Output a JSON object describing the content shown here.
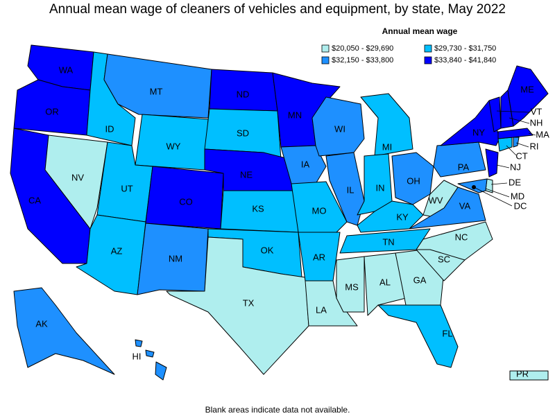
{
  "title": "Annual mean wage of cleaners of vehicles and equipment, by state, May 2022",
  "legend": {
    "title": "Annual mean wage",
    "items": [
      {
        "label": "$20,050 - $29,690",
        "color": "#afeeee"
      },
      {
        "label": "$29,730 - $31,750",
        "color": "#00bfff"
      },
      {
        "label": "$32,150 - $33,800",
        "color": "#1e90ff"
      },
      {
        "label": "$33,840 - $41,840",
        "color": "#0000ff"
      }
    ]
  },
  "states": [
    {
      "label": "WA",
      "class": 3
    },
    {
      "label": "OR",
      "class": 3
    },
    {
      "label": "CA",
      "class": 3
    },
    {
      "label": "NV",
      "class": 0
    },
    {
      "label": "ID",
      "class": 1
    },
    {
      "label": "MT",
      "class": 2
    },
    {
      "label": "WY",
      "class": 1
    },
    {
      "label": "UT",
      "class": 1
    },
    {
      "label": "CO",
      "class": 3
    },
    {
      "label": "AZ",
      "class": 1
    },
    {
      "label": "NM",
      "class": 2
    },
    {
      "label": "ND",
      "class": 3
    },
    {
      "label": "SD",
      "class": 1
    },
    {
      "label": "NE",
      "class": 3
    },
    {
      "label": "KS",
      "class": 1
    },
    {
      "label": "OK",
      "class": 1
    },
    {
      "label": "TX",
      "class": 0
    },
    {
      "label": "MN",
      "class": 3
    },
    {
      "label": "IA",
      "class": 2
    },
    {
      "label": "MO",
      "class": 1
    },
    {
      "label": "AR",
      "class": 1
    },
    {
      "label": "LA",
      "class": 0
    },
    {
      "label": "WI",
      "class": 2
    },
    {
      "label": "IL",
      "class": 2
    },
    {
      "label": "MI",
      "class": 1
    },
    {
      "label": "IN",
      "class": 1
    },
    {
      "label": "OH",
      "class": 2
    },
    {
      "label": "KY",
      "class": 1
    },
    {
      "label": "TN",
      "class": 1
    },
    {
      "label": "MS",
      "class": 0
    },
    {
      "label": "AL",
      "class": 0
    },
    {
      "label": "GA",
      "class": 0
    },
    {
      "label": "FL",
      "class": 1
    },
    {
      "label": "SC",
      "class": 0
    },
    {
      "label": "NC",
      "class": 0
    },
    {
      "label": "VA",
      "class": 2
    },
    {
      "label": "WV",
      "class": 0
    },
    {
      "label": "PA",
      "class": 2
    },
    {
      "label": "NY",
      "class": 3
    },
    {
      "label": "NJ",
      "class": 3
    },
    {
      "label": "DE",
      "class": 0
    },
    {
      "label": "MD",
      "class": 2
    },
    {
      "label": "CT",
      "class": 1
    },
    {
      "label": "RI",
      "class": 2
    },
    {
      "label": "MA",
      "class": 3
    },
    {
      "label": "VT",
      "class": 3
    },
    {
      "label": "NH",
      "class": 3
    },
    {
      "label": "ME",
      "class": 3
    },
    {
      "label": "AK",
      "class": 2
    },
    {
      "label": "HI",
      "class": 2
    },
    {
      "label": "PR",
      "class": 0
    }
  ],
  "dc": {
    "label": "DC"
  },
  "footnote": "Blank areas indicate data not available."
}
